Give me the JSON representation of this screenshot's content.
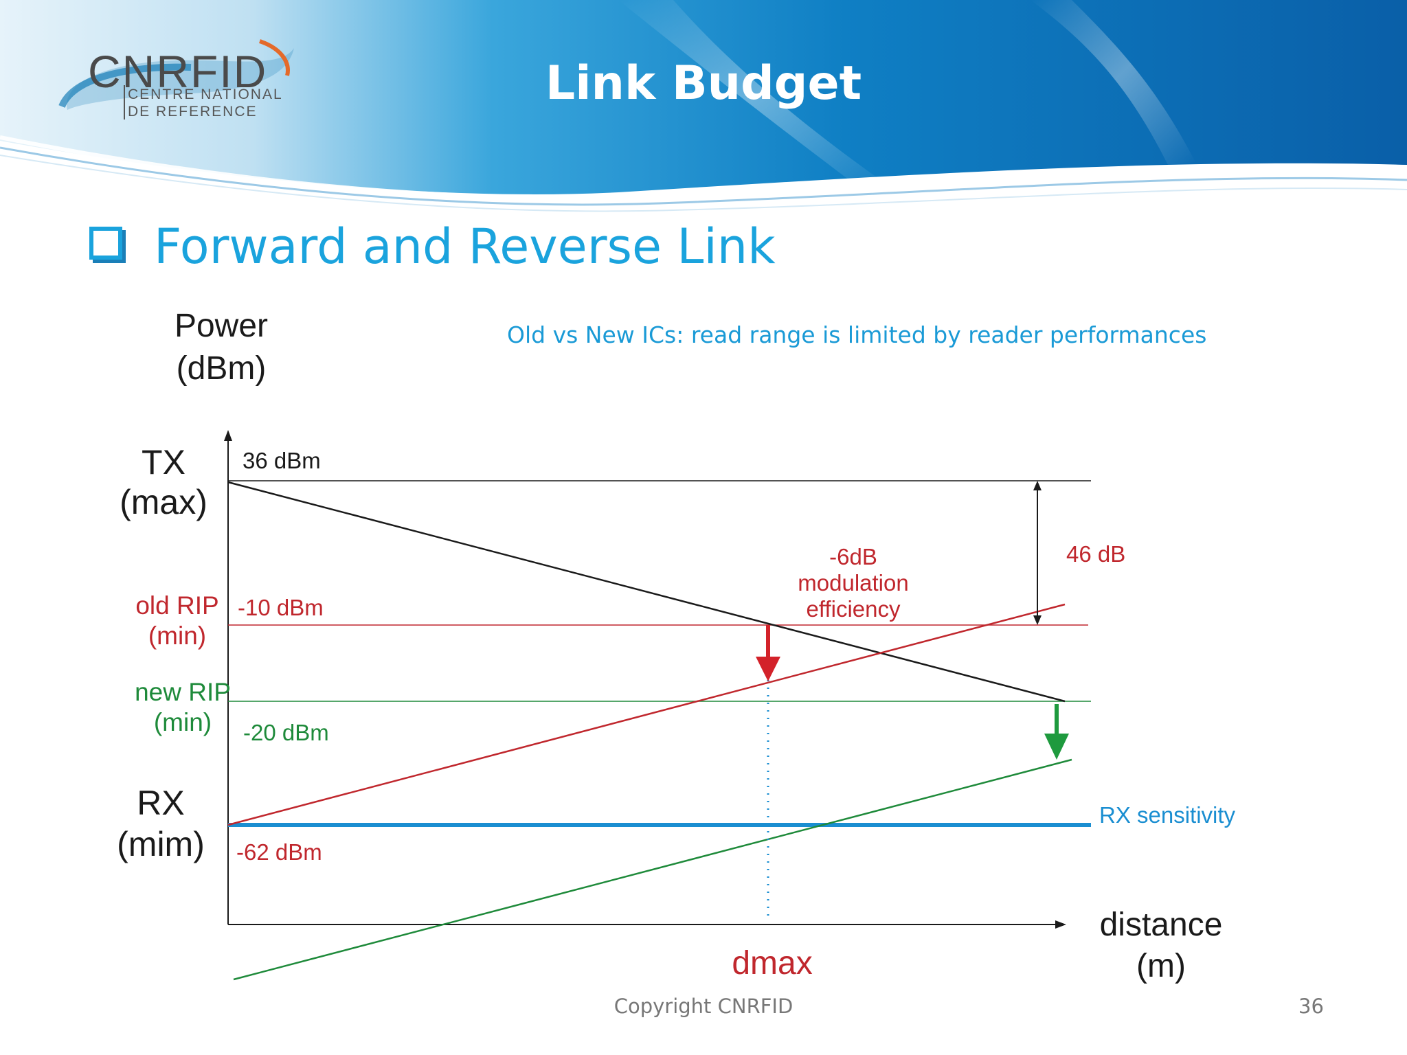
{
  "slide": {
    "title": "Link Budget",
    "subheading": "Forward and Reverse Link",
    "note": "Old vs New ICs: read range is limited by reader performances",
    "copyright": "Copyright CNRFID",
    "page_number": "36"
  },
  "logo": {
    "name": "CNRFID",
    "line1": "CENTRE NATIONAL",
    "line2": "DE REFERENCE"
  },
  "diagram": {
    "y_axis_title_1": "Power",
    "y_axis_title_2": "(dBm)",
    "x_axis_title_1": "distance",
    "x_axis_title_2": "(m)",
    "tx_label_1": "TX",
    "tx_label_2": "(max)",
    "tx_value": "36 dBm",
    "old_rip_label_1": "old RIP",
    "old_rip_label_2": "(min)",
    "old_rip_value": "-10 dBm",
    "new_rip_label_1": "new RIP",
    "new_rip_label_2": "(min)",
    "new_rip_value": "-20 dBm",
    "rx_label_1": "RX",
    "rx_label_2": "(mim)",
    "rx_value": "-62 dBm",
    "rx_sensitivity": "RX sensitivity",
    "range_label": "46 dB",
    "modulation_1": "-6dB",
    "modulation_2": "modulation",
    "modulation_3": "efficiency",
    "dmax": "dmax",
    "colors": {
      "black": "#1a1a1a",
      "red": "#c0272d",
      "green": "#1e8a3a",
      "blue": "#1a8ed1",
      "accent": "#1aa3dd"
    }
  }
}
